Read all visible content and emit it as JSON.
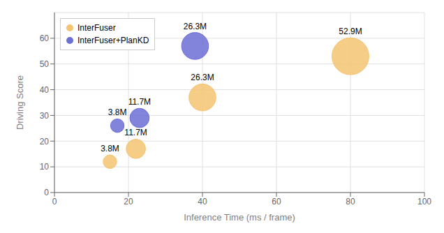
{
  "chart_data": {
    "type": "scatter",
    "xlabel": "Inference Time (ms / frame)",
    "ylabel": "Driving Score",
    "xlim": [
      0,
      100
    ],
    "ylim": [
      0,
      70
    ],
    "xticks": [
      0,
      20,
      40,
      60,
      80,
      100
    ],
    "yticks": [
      0,
      10,
      20,
      30,
      40,
      50,
      60
    ],
    "grid": true,
    "legend": "upper left",
    "series": [
      {
        "name": "InterFuser",
        "color": "#F5C471",
        "x": [
          15,
          22,
          40,
          80
        ],
        "values": [
          12,
          17,
          37,
          53
        ],
        "sizes": [
          3.8,
          11.7,
          26.3,
          52.9
        ],
        "size_labels": [
          "3.8M",
          "11.7M",
          "26.3M",
          "52.9M"
        ]
      },
      {
        "name": "InterFuser+PlanKD",
        "color": "#6B6FD4",
        "x": [
          17,
          23,
          38
        ],
        "values": [
          26,
          29,
          57
        ],
        "sizes": [
          3.8,
          11.7,
          26.3
        ],
        "size_labels": [
          "3.8M",
          "11.7M",
          "26.3M"
        ]
      }
    ]
  }
}
